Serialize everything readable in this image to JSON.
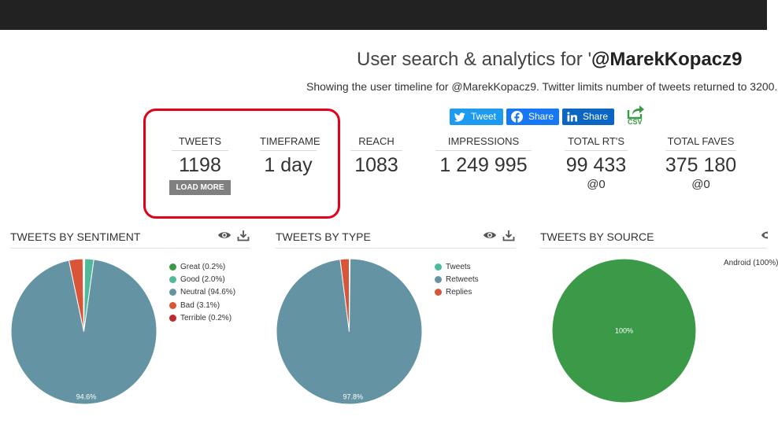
{
  "header": {
    "title_prefix": "User search & analytics for '",
    "title_handle": "@MarekKopacz9",
    "subtitle": "Showing the user timeline for @MarekKopacz9. Twitter limits number of tweets returned to 3200."
  },
  "share": {
    "tweet_label": "Tweet",
    "facebook_label": "Share",
    "linkedin_label": "Share",
    "csv_label": "CSV"
  },
  "stats": {
    "tweets": {
      "label": "TWEETS",
      "value": "1198",
      "button": "LOAD MORE"
    },
    "timeframe": {
      "label": "TIMEFRAME",
      "value": "1 day"
    },
    "reach": {
      "label": "REACH",
      "value": "1083"
    },
    "impressions": {
      "label": "IMPRESSIONS",
      "value": "1 249 995"
    },
    "total_rts": {
      "label": "TOTAL RT'S",
      "value": "99 433",
      "sub": "@0"
    },
    "total_faves": {
      "label": "TOTAL FAVES",
      "value": "375 180",
      "sub": "@0"
    }
  },
  "panels": {
    "sentiment": {
      "title": "TWEETS BY SENTIMENT"
    },
    "type": {
      "title": "TWEETS BY TYPE"
    },
    "source": {
      "title": "TWEETS BY SOURCE"
    }
  },
  "chart_data": [
    {
      "type": "pie",
      "title": "TWEETS BY SENTIMENT",
      "categories": [
        "Great (0.2%)",
        "Good (2.0%)",
        "Neutral (94.6%)",
        "Bad (3.1%)",
        "Terrible (0.2%)"
      ],
      "values": [
        0.2,
        2.0,
        94.6,
        3.1,
        0.2
      ],
      "colors": [
        "#3a9a48",
        "#4fb99a",
        "#6494a4",
        "#d9553a",
        "#c0292f"
      ],
      "data_labels": [
        "",
        "",
        "94.6%",
        "",
        ""
      ],
      "legend": "right"
    },
    {
      "type": "pie",
      "title": "TWEETS BY TYPE",
      "categories": [
        "Tweets",
        "Retweets",
        "Replies"
      ],
      "values": [
        0.2,
        97.8,
        2.0
      ],
      "colors": [
        "#4fb99a",
        "#6494a4",
        "#d9553a"
      ],
      "data_labels": [
        "",
        "97.8%",
        ""
      ],
      "legend": "right"
    },
    {
      "type": "pie",
      "title": "TWEETS BY SOURCE",
      "categories": [
        "Android (100%)"
      ],
      "values": [
        100
      ],
      "colors": [
        "#3a9a48"
      ],
      "data_labels": [
        "100%"
      ],
      "legend": "right"
    }
  ]
}
